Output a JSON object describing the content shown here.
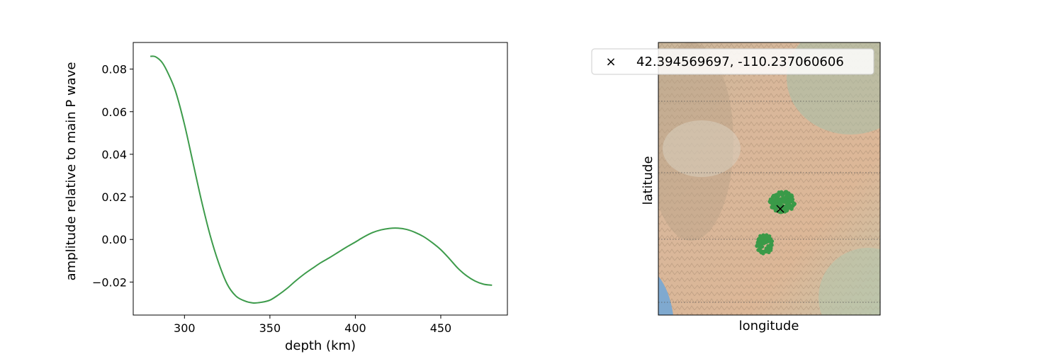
{
  "chart_data": [
    {
      "type": "line",
      "xlabel": "depth (km)",
      "ylabel": "amplitude relative to main P wave",
      "xlim": [
        270,
        489
      ],
      "ylim": [
        -0.0355,
        0.0925
      ],
      "xticks": [
        300,
        350,
        400,
        450
      ],
      "xtick_labels": [
        "300",
        "350",
        "400",
        "450"
      ],
      "yticks": [
        -0.02,
        0.0,
        0.02,
        0.04,
        0.06,
        0.08
      ],
      "ytick_labels": [
        "−0.02",
        "0.00",
        "0.02",
        "0.04",
        "0.06",
        "0.08"
      ],
      "grid": false,
      "series": [
        {
          "color": "#3d9b4b",
          "x": [
            280,
            283,
            287,
            291,
            295,
            300,
            305,
            310,
            315,
            320,
            325,
            330,
            335,
            340,
            345,
            350,
            355,
            360,
            365,
            370,
            375,
            380,
            385,
            390,
            395,
            400,
            405,
            410,
            415,
            420,
            425,
            430,
            435,
            440,
            445,
            450,
            455,
            460,
            465,
            470,
            475,
            480
          ],
          "y": [
            0.086,
            0.0858,
            0.083,
            0.077,
            0.069,
            0.054,
            0.036,
            0.018,
            0.002,
            -0.011,
            -0.021,
            -0.0265,
            -0.0288,
            -0.0298,
            -0.0295,
            -0.0285,
            -0.026,
            -0.023,
            -0.0195,
            -0.0163,
            -0.0135,
            -0.0108,
            -0.0085,
            -0.006,
            -0.0035,
            -0.0012,
            0.0012,
            0.0032,
            0.0045,
            0.0052,
            0.0053,
            0.0047,
            0.0033,
            0.0013,
            -0.0015,
            -0.0048,
            -0.009,
            -0.0135,
            -0.017,
            -0.0195,
            -0.021,
            -0.0215
          ]
        }
      ]
    },
    {
      "type": "scatter",
      "xlabel": "longitude",
      "ylabel": "latitude",
      "background": "shaded-relief-map",
      "gridlines": "dotted latitude lines",
      "legend": {
        "location": "upper-left, extending outside axes",
        "marker": "×",
        "label": "42.394569697, -110.237060606"
      },
      "marker_location": {
        "lat": 42.394569697,
        "lon": -110.237060606
      },
      "cluster_color": "#3a9a48"
    }
  ]
}
